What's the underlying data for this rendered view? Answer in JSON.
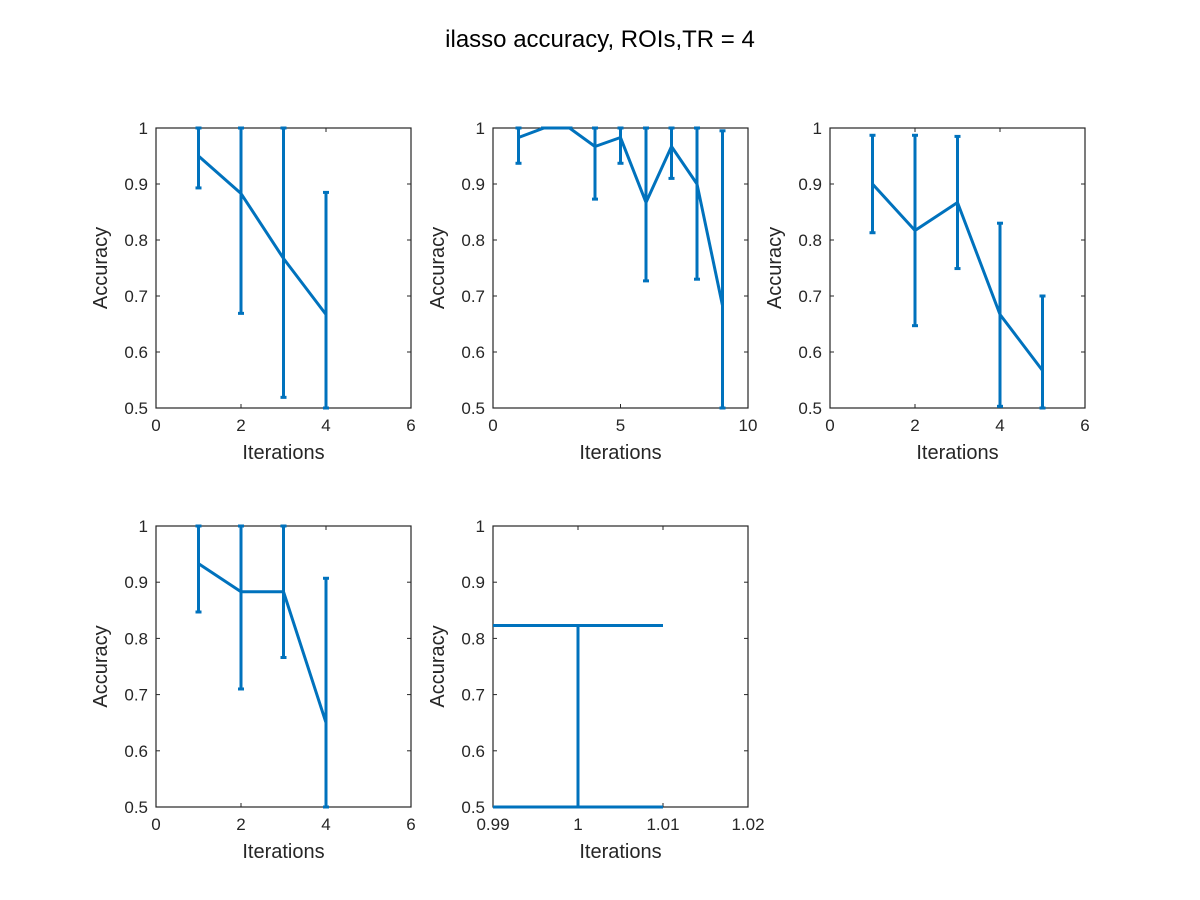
{
  "figure": {
    "title": "ilasso accuracy, ROIs,TR = 4",
    "line_color": "#0072bd"
  },
  "chart_data": [
    {
      "type": "line",
      "error_bars": true,
      "xlabel": "Iterations",
      "ylabel": "Accuracy",
      "xlim": [
        0,
        6
      ],
      "ylim": [
        0.5,
        1
      ],
      "xticks": [
        0,
        2,
        4,
        6
      ],
      "yticks": [
        0.5,
        0.6,
        0.7,
        0.8,
        0.9,
        1
      ],
      "x": [
        1,
        2,
        3,
        4
      ],
      "y": [
        0.95,
        0.883,
        0.767,
        0.667
      ],
      "lower": [
        0.893,
        0.669,
        0.519,
        0.5
      ],
      "upper": [
        1.0,
        1.0,
        1.0,
        0.885
      ]
    },
    {
      "type": "line",
      "error_bars": true,
      "xlabel": "Iterations",
      "ylabel": "Accuracy",
      "xlim": [
        0,
        10
      ],
      "ylim": [
        0.5,
        1
      ],
      "xticks": [
        0,
        5,
        10
      ],
      "yticks": [
        0.5,
        0.6,
        0.7,
        0.8,
        0.9,
        1
      ],
      "x": [
        1,
        2,
        3,
        4,
        5,
        6,
        7,
        8,
        9
      ],
      "y": [
        0.983,
        1.0,
        1.0,
        0.967,
        0.983,
        0.867,
        0.967,
        0.9,
        0.683
      ],
      "lower": [
        0.937,
        1.0,
        1.0,
        0.873,
        0.937,
        0.727,
        0.91,
        0.73,
        0.5
      ],
      "upper": [
        1.0,
        1.0,
        1.0,
        1.0,
        1.0,
        1.0,
        1.0,
        1.0,
        0.995
      ]
    },
    {
      "type": "line",
      "error_bars": true,
      "xlabel": "Iterations",
      "ylabel": "Accuracy",
      "xlim": [
        0,
        6
      ],
      "ylim": [
        0.5,
        1
      ],
      "xticks": [
        0,
        2,
        4,
        6
      ],
      "yticks": [
        0.5,
        0.6,
        0.7,
        0.8,
        0.9,
        1
      ],
      "x": [
        1,
        2,
        3,
        4,
        5
      ],
      "y": [
        0.9,
        0.817,
        0.867,
        0.667,
        0.567
      ],
      "lower": [
        0.813,
        0.647,
        0.749,
        0.503,
        0.5
      ],
      "upper": [
        0.987,
        0.987,
        0.985,
        0.83,
        0.7
      ]
    },
    {
      "type": "line",
      "error_bars": true,
      "xlabel": "Iterations",
      "ylabel": "Accuracy",
      "xlim": [
        0,
        6
      ],
      "ylim": [
        0.5,
        1
      ],
      "xticks": [
        0,
        2,
        4,
        6
      ],
      "yticks": [
        0.5,
        0.6,
        0.7,
        0.8,
        0.9,
        1
      ],
      "x": [
        1,
        2,
        3,
        4
      ],
      "y": [
        0.933,
        0.883,
        0.883,
        0.65
      ],
      "lower": [
        0.847,
        0.71,
        0.766,
        0.5
      ],
      "upper": [
        1.0,
        1.0,
        1.0,
        0.907
      ]
    },
    {
      "type": "line",
      "error_bars": true,
      "xlabel": "Iterations",
      "ylabel": "Accuracy",
      "xlim": [
        0.99,
        1.02
      ],
      "ylim": [
        0.5,
        1
      ],
      "xticks": [
        0.99,
        1,
        1.01,
        1.02
      ],
      "yticks": [
        0.5,
        0.6,
        0.7,
        0.8,
        0.9,
        1
      ],
      "x": [
        1
      ],
      "y": [
        0.823
      ],
      "lower": [
        0.5
      ],
      "upper": [
        0.823
      ],
      "cap_halfwidth": 0.01
    }
  ]
}
